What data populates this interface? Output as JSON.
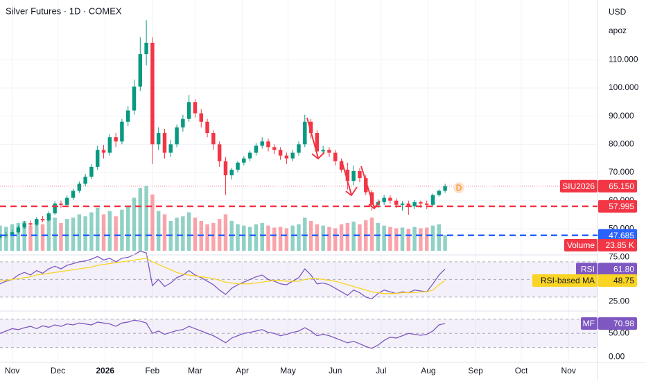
{
  "chart_data": {
    "type": "candlestick",
    "title": "Silver Futures · 1D · COMEX",
    "currency": "USD",
    "scale_label": "apoz",
    "event_marker": "D",
    "xlim": [
      -8,
      384
    ],
    "xticks": [
      {
        "value": 0,
        "label": "Nov"
      },
      {
        "value": 30,
        "label": "Dec"
      },
      {
        "value": 61,
        "label": "2026"
      },
      {
        "value": 92,
        "label": "Feb"
      },
      {
        "value": 120,
        "label": "Mar"
      },
      {
        "value": 151,
        "label": "Apr"
      },
      {
        "value": 181,
        "label": "May"
      },
      {
        "value": 212,
        "label": "Jun"
      },
      {
        "value": 242,
        "label": "Jul"
      },
      {
        "value": 273,
        "label": "Aug"
      },
      {
        "value": 304,
        "label": "Sep"
      },
      {
        "value": 334,
        "label": "Oct"
      },
      {
        "value": 365,
        "label": "Nov"
      }
    ],
    "ylim": [
      41,
      131.2
    ],
    "yticks": [
      {
        "value": 50,
        "label": "50.000"
      },
      {
        "value": 60,
        "label": "60.000"
      },
      {
        "value": 70,
        "label": "70.000"
      },
      {
        "value": 80,
        "label": "80.000"
      },
      {
        "value": 90,
        "label": "90.000"
      },
      {
        "value": 100,
        "label": "100.000"
      },
      {
        "value": 110,
        "label": "110.000"
      }
    ],
    "grid": true,
    "up_color": "#089981",
    "down_color": "#f23645",
    "x": [
      -8,
      -4,
      0,
      4,
      8,
      12,
      16,
      20,
      24,
      28,
      32,
      36,
      40,
      44,
      48,
      52,
      56,
      60,
      64,
      68,
      72,
      76,
      80,
      84,
      88,
      92,
      96,
      100,
      104,
      108,
      112,
      116,
      120,
      124,
      128,
      132,
      136,
      140,
      144,
      148,
      152,
      156,
      160,
      164,
      168,
      172,
      176,
      180,
      184,
      188,
      192,
      196,
      200,
      204,
      208,
      212,
      216,
      220,
      224,
      228,
      232,
      236,
      240,
      244,
      248,
      252,
      256,
      260,
      264,
      268,
      272,
      276,
      280,
      284
    ],
    "open": [
      47.0,
      47.5,
      48.0,
      48.8,
      50.5,
      52.0,
      51.5,
      53.5,
      53.0,
      55.5,
      59.0,
      58.5,
      61.0,
      63.5,
      66.0,
      68.5,
      72.0,
      78.0,
      77.0,
      82.5,
      81.0,
      88.0,
      92.0,
      100.5,
      112.0,
      116.0,
      80.0,
      84.0,
      77.0,
      80.0,
      86.0,
      89.0,
      95.0,
      91.0,
      88.0,
      84.0,
      80.0,
      74.0,
      69.0,
      71.0,
      73.5,
      75.0,
      77.0,
      79.5,
      81.0,
      79.0,
      78.0,
      76.0,
      75.0,
      77.0,
      80.0,
      88.0,
      84.0,
      77.5,
      78.0,
      77.0,
      74.0,
      71.0,
      67.0,
      70.5,
      68.0,
      63.0,
      58.5,
      59.5,
      61.0,
      60.0,
      58.5,
      59.0,
      58.0,
      59.5,
      59.0,
      58.5,
      62.0,
      63.5
    ],
    "high": [
      48.2,
      48.9,
      49.6,
      51.2,
      52.8,
      53.0,
      54.2,
      54.5,
      56.2,
      59.8,
      60.0,
      61.8,
      64.3,
      66.8,
      69.5,
      73.0,
      79.5,
      79.8,
      83.5,
      84.0,
      89.0,
      93.5,
      103.0,
      118.0,
      124.0,
      118.0,
      86.0,
      85.5,
      81.5,
      87.0,
      90.5,
      97.5,
      96.0,
      92.5,
      89.0,
      85.0,
      81.0,
      75.5,
      71.5,
      74.0,
      75.8,
      77.8,
      80.5,
      82.5,
      82.0,
      80.0,
      79.0,
      77.0,
      78.0,
      81.0,
      90.5,
      89.0,
      85.0,
      79.5,
      79.0,
      78.0,
      75.0,
      73.5,
      72.5,
      71.5,
      69.0,
      63.8,
      60.5,
      62.0,
      62.0,
      60.8,
      59.8,
      60.0,
      60.2,
      60.0,
      60.0,
      62.5,
      64.0,
      66.0
    ],
    "low": [
      46.5,
      46.9,
      47.5,
      48.3,
      50.0,
      50.8,
      51.0,
      52.3,
      52.6,
      55.0,
      57.5,
      57.9,
      60.2,
      62.8,
      65.2,
      67.8,
      71.0,
      75.0,
      76.0,
      79.0,
      80.0,
      86.5,
      90.5,
      99.0,
      108.0,
      73.0,
      78.0,
      75.0,
      75.5,
      79.0,
      84.5,
      88.0,
      89.5,
      86.0,
      82.5,
      78.0,
      72.0,
      62.0,
      67.5,
      70.0,
      72.5,
      74.0,
      76.0,
      78.5,
      77.5,
      76.5,
      74.5,
      73.0,
      74.0,
      76.0,
      79.0,
      82.0,
      76.0,
      76.5,
      75.5,
      72.5,
      70.0,
      64.0,
      65.5,
      66.5,
      62.0,
      56.5,
      57.5,
      58.5,
      59.0,
      57.5,
      56.5,
      55.0,
      57.0,
      57.5,
      57.0,
      58.0,
      61.5,
      62.8
    ],
    "close": [
      47.5,
      48.0,
      48.8,
      50.5,
      52.0,
      51.5,
      53.5,
      53.0,
      55.5,
      59.0,
      58.5,
      61.0,
      63.5,
      66.0,
      68.5,
      72.0,
      78.0,
      77.0,
      82.5,
      81.0,
      88.0,
      92.0,
      100.5,
      112.0,
      116.0,
      80.0,
      84.0,
      77.0,
      80.0,
      86.0,
      89.0,
      95.0,
      91.0,
      88.0,
      84.0,
      80.0,
      74.0,
      69.0,
      71.0,
      73.5,
      75.0,
      77.0,
      79.5,
      81.0,
      79.0,
      78.0,
      76.0,
      75.0,
      77.0,
      80.0,
      88.0,
      84.0,
      77.5,
      78.0,
      77.0,
      74.0,
      71.0,
      67.0,
      70.5,
      68.0,
      63.0,
      58.5,
      59.5,
      61.0,
      60.0,
      58.5,
      59.0,
      58.0,
      59.5,
      59.0,
      58.5,
      62.0,
      63.5,
      65.15
    ],
    "last_price": {
      "name": "SIU2026",
      "value": 65.15,
      "label": "65.150"
    },
    "hlines": [
      {
        "value": 57.995,
        "label": "57.995",
        "color": "#f23645"
      },
      {
        "value": 47.685,
        "label": "47.685",
        "color": "#2962ff"
      }
    ],
    "volume": {
      "name": "Volume",
      "ylim": [
        0,
        115
      ],
      "last_label": "23.85 K",
      "values": [
        38,
        36,
        40,
        42,
        45,
        38,
        44,
        40,
        46,
        50,
        42,
        48,
        50,
        55,
        52,
        58,
        65,
        55,
        60,
        52,
        62,
        68,
        80,
        95,
        98,
        85,
        60,
        55,
        45,
        50,
        52,
        58,
        50,
        45,
        40,
        42,
        48,
        55,
        45,
        40,
        38,
        36,
        40,
        42,
        38,
        35,
        36,
        34,
        38,
        40,
        50,
        45,
        40,
        38,
        36,
        34,
        40,
        42,
        44,
        40,
        46,
        50,
        42,
        38,
        36,
        34,
        35,
        33,
        36,
        34,
        35,
        38,
        40,
        23.85
      ]
    },
    "panes": [
      {
        "ylim": [
          15,
          77
        ],
        "yticks": [
          {
            "value": 75,
            "label": "75.00"
          },
          {
            "value": 25,
            "label": "25.00"
          }
        ],
        "band": [
          30,
          70
        ],
        "levels": [
          70,
          50,
          30
        ],
        "series": [
          {
            "name": "RSI",
            "color": "#7e57c2",
            "text_color": "#ffffff",
            "last_label": "61.80",
            "values": [
              45,
              48,
              50,
              55,
              58,
              55,
              60,
              57,
              62,
              65,
              62,
              66,
              68,
              70,
              71,
              73,
              76,
              72,
              74,
              70,
              74,
              75,
              78,
              82,
              80,
              43,
              50,
              42,
              46,
              52,
              55,
              60,
              55,
              52,
              48,
              44,
              38,
              33,
              40,
              44,
              47,
              50,
              53,
              55,
              50,
              48,
              45,
              44,
              48,
              52,
              62,
              55,
              45,
              46,
              44,
              40,
              36,
              32,
              38,
              35,
              30,
              28,
              34,
              38,
              36,
              34,
              36,
              35,
              38,
              37,
              36,
              45,
              55,
              61.8
            ]
          },
          {
            "name": "RSI-based MA",
            "color": "#f9d423",
            "text_color": "#131722",
            "last_label": "48.75",
            "values": [
              48,
              49,
              50,
              51,
              52,
              53,
              55,
              56,
              57,
              58,
              59,
              60,
              61,
              62,
              63,
              64,
              66,
              67,
              68,
              69,
              70,
              71,
              72,
              73,
              74,
              70,
              67,
              64,
              61,
              58,
              56,
              55,
              54,
              53,
              52,
              51,
              49,
              47,
              46,
              45,
              45,
              45,
              46,
              47,
              48,
              49,
              49,
              48,
              48,
              48,
              50,
              51,
              51,
              50,
              49,
              48,
              46,
              44,
              42,
              40,
              38,
              36,
              35,
              34,
              34,
              34,
              35,
              35,
              35,
              36,
              36,
              38,
              44,
              48.75
            ]
          }
        ]
      },
      {
        "ylim": [
          -10,
          96
        ],
        "yticks": [
          {
            "value": 50,
            "label": "50.00"
          },
          {
            "value": 0,
            "label": "0.00"
          }
        ],
        "band": [
          20,
          80
        ],
        "levels": [
          80,
          50,
          20
        ],
        "series": [
          {
            "name": "MF",
            "color": "#7e57c2",
            "text_color": "#ffffff",
            "last_label": "70.98",
            "values": [
              50,
              55,
              60,
              58,
              62,
              65,
              60,
              66,
              63,
              68,
              65,
              70,
              68,
              72,
              70,
              68,
              74,
              72,
              70,
              65,
              72,
              74,
              78,
              76,
              72,
              50,
              55,
              48,
              52,
              56,
              58,
              65,
              60,
              55,
              50,
              45,
              38,
              30,
              40,
              45,
              50,
              52,
              55,
              58,
              52,
              50,
              45,
              48,
              52,
              55,
              62,
              55,
              45,
              48,
              45,
              40,
              35,
              30,
              33,
              28,
              22,
              18,
              25,
              35,
              42,
              40,
              45,
              50,
              48,
              46,
              48,
              55,
              68,
              70.98
            ]
          }
        ]
      }
    ]
  }
}
